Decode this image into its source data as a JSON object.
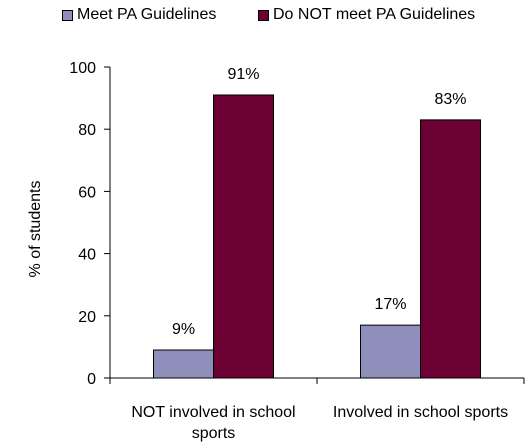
{
  "chart_data": {
    "type": "bar",
    "categories": [
      "NOT involved in school sports",
      "Involved in school sports"
    ],
    "category_lines": [
      [
        "NOT involved in school",
        "sports"
      ],
      [
        "Involved in school sports"
      ]
    ],
    "series": [
      {
        "name": "Meet PA Guidelines",
        "values": [
          9,
          17
        ],
        "labels": [
          "9%",
          "17%"
        ],
        "color": "#8f8fbc"
      },
      {
        "name": "Do NOT meet PA Guidelines",
        "values": [
          91,
          83
        ],
        "labels": [
          "91%",
          "83%"
        ],
        "color": "#6b0033"
      }
    ],
    "ylabel": "% of students",
    "xlabel": "",
    "ylim": [
      0,
      100
    ],
    "yticks": [
      0,
      20,
      40,
      60,
      80,
      100
    ],
    "grid": false,
    "legend_position": "top"
  }
}
